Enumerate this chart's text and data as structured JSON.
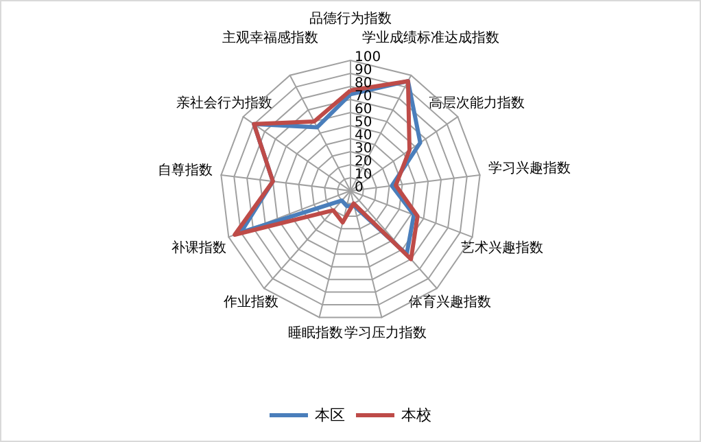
{
  "chart_data": {
    "type": "radar",
    "categories": [
      "品德行为指数",
      "学业成绩标准达成指数",
      "高层次能力指数",
      "学习兴趣指数",
      "艺术兴趣指数",
      "体育兴趣指数",
      "学习压力指数",
      "睡眠指数",
      "作业指数",
      "补课指数",
      "自尊指数",
      "亲社会行为指数",
      "主观幸福感指数"
    ],
    "series": [
      {
        "name": "本区",
        "color": "#4a7ebb",
        "values": [
          74,
          95,
          65,
          32,
          52,
          65,
          12,
          12,
          10,
          90,
          60,
          90,
          55
        ]
      },
      {
        "name": "本校",
        "color": "#be4b48",
        "values": [
          77,
          95,
          55,
          35,
          55,
          70,
          10,
          25,
          20,
          95,
          60,
          90,
          60
        ]
      }
    ],
    "ylim": [
      0,
      100
    ],
    "yticks": [
      0,
      10,
      20,
      30,
      40,
      50,
      60,
      70,
      80,
      90,
      100
    ],
    "grid": true,
    "legend": "bottom",
    "marker": "none",
    "line_style": "solid"
  }
}
